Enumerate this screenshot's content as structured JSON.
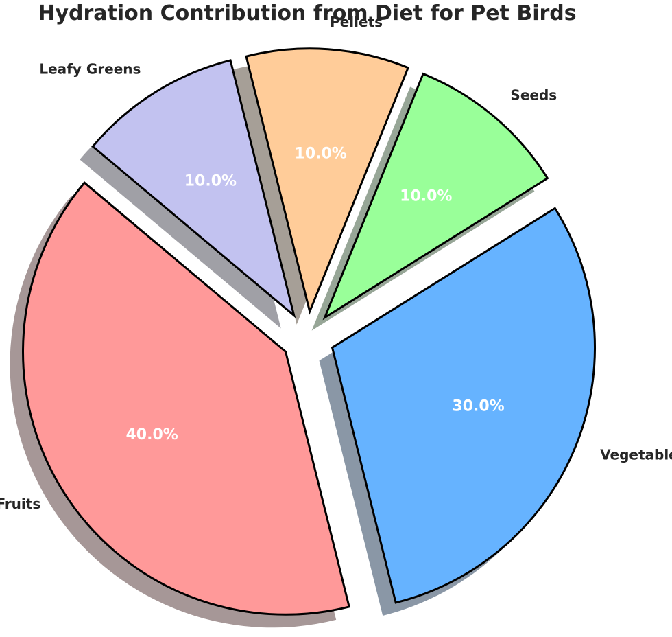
{
  "chart_data": {
    "type": "pie",
    "title": "Hydration Contribution from Diet for Pet Birds",
    "categories": [
      "Fruits",
      "Vegetables",
      "Seeds",
      "Pellets",
      "Leafy Greens"
    ],
    "values": [
      40,
      30,
      10,
      10,
      10
    ],
    "percent_labels": [
      "40.0%",
      "30.0%",
      "10.0%",
      "10.0%",
      "10.0%"
    ],
    "colors": [
      "#ff9999",
      "#66b3ff",
      "#99ff99",
      "#ffcc99",
      "#c2c2f0"
    ],
    "shadow_colors": [
      "#a69797",
      "#8a97a6",
      "#97a697",
      "#a69f97",
      "#a0a0a6"
    ],
    "edge_color": "#000000",
    "start_angle_deg": 140,
    "direction": "counterclockwise",
    "explode": [
      0.1,
      0.1,
      0.1,
      0.1,
      0.1
    ],
    "shadow": true
  }
}
